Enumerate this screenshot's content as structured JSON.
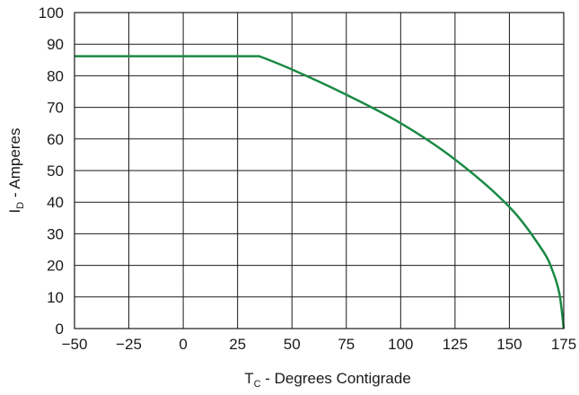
{
  "chart_data": {
    "type": "line",
    "title": "",
    "xlabel": {
      "main": "T",
      "sub": "C",
      "rest": " - Degrees Contigrade"
    },
    "ylabel": {
      "main": "I",
      "sub": "D",
      "rest": " - Amperes"
    },
    "xlim": [
      -50,
      175
    ],
    "ylim": [
      0,
      100
    ],
    "x_ticks": [
      -50,
      -25,
      0,
      25,
      50,
      75,
      100,
      125,
      150,
      175
    ],
    "x_tick_labels": [
      "−50",
      "−25",
      "0",
      "25",
      "50",
      "75",
      "100",
      "125",
      "150",
      "175"
    ],
    "y_ticks": [
      0,
      10,
      20,
      30,
      40,
      50,
      60,
      70,
      80,
      90,
      100
    ],
    "y_tick_labels": [
      "0",
      "10",
      "20",
      "30",
      "40",
      "50",
      "60",
      "70",
      "80",
      "90",
      "100"
    ],
    "grid": true,
    "series": [
      {
        "color": "#1a8a44",
        "x": [
          -50,
          35,
          50,
          75,
          100,
          125,
          150,
          165,
          170,
          173,
          175
        ],
        "y": [
          86.2,
          86.2,
          82,
          74,
          65,
          53.5,
          38.5,
          25,
          18,
          11,
          0
        ]
      }
    ]
  }
}
